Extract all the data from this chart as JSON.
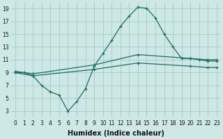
{
  "xlabel": "Humidex (Indice chaleur)",
  "bg_color": "#cde8e5",
  "grid_color": "#a8d0cc",
  "line_color": "#1e6b63",
  "xlim": [
    -0.5,
    23.5
  ],
  "ylim": [
    2,
    20
  ],
  "xticks": [
    0,
    1,
    2,
    3,
    4,
    5,
    6,
    7,
    8,
    9,
    10,
    11,
    12,
    13,
    14,
    15,
    16,
    17,
    18,
    19,
    20,
    21,
    22,
    23
  ],
  "yticks": [
    3,
    5,
    7,
    9,
    11,
    13,
    15,
    17,
    19
  ],
  "line1_x": [
    0,
    1,
    2,
    3,
    4,
    5,
    6,
    7,
    8,
    9,
    10,
    11,
    12,
    13,
    14,
    15,
    16,
    17,
    18,
    19,
    20,
    21,
    22,
    23
  ],
  "line1_y": [
    9.0,
    9.0,
    8.5,
    7.0,
    6.0,
    5.5,
    3.0,
    4.5,
    6.5,
    10.0,
    12.0,
    14.0,
    16.2,
    17.8,
    19.2,
    19.0,
    17.5,
    15.0,
    13.0,
    11.2,
    11.2,
    11.0,
    10.8,
    10.8
  ],
  "line2_x": [
    0,
    2,
    9,
    14,
    20,
    22,
    23
  ],
  "line2_y": [
    9.2,
    8.8,
    10.2,
    11.8,
    11.2,
    11.0,
    11.0
  ],
  "line3_x": [
    0,
    2,
    9,
    14,
    20,
    22,
    23
  ],
  "line3_y": [
    9.0,
    8.5,
    9.5,
    10.5,
    10.0,
    9.8,
    9.8
  ],
  "xlabel_fontsize": 7,
  "tick_fontsize": 5.5,
  "xlabel_fontweight": "bold"
}
